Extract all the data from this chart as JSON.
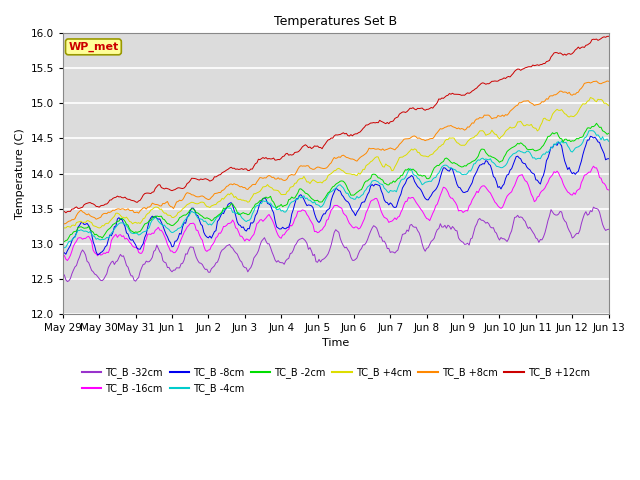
{
  "title": "Temperatures Set B",
  "xlabel": "Time",
  "ylabel": "Temperature (C)",
  "ylim": [
    12.0,
    16.0
  ],
  "xlim": [
    0,
    360
  ],
  "background_color": "#dcdcdc",
  "figure_color": "#ffffff",
  "series": [
    {
      "label": "TC_B -32cm",
      "color": "#9933cc",
      "start": 12.65,
      "end": 13.38,
      "diurnal": 0.18,
      "noise": 0.08,
      "seed": 0
    },
    {
      "label": "TC_B -16cm",
      "color": "#ff00ff",
      "start": 12.95,
      "end": 13.95,
      "diurnal": 0.16,
      "noise": 0.07,
      "seed": 1
    },
    {
      "label": "TC_B -8cm",
      "color": "#0000ee",
      "start": 13.05,
      "end": 14.35,
      "diurnal": 0.2,
      "noise": 0.08,
      "seed": 2
    },
    {
      "label": "TC_B -4cm",
      "color": "#00cccc",
      "start": 13.1,
      "end": 14.55,
      "diurnal": 0.1,
      "noise": 0.05,
      "seed": 3
    },
    {
      "label": "TC_B -2cm",
      "color": "#00dd00",
      "start": 13.15,
      "end": 14.65,
      "diurnal": 0.09,
      "noise": 0.05,
      "seed": 4
    },
    {
      "label": "TC_B +4cm",
      "color": "#dddd00",
      "start": 13.25,
      "end": 15.05,
      "diurnal": 0.07,
      "noise": 0.05,
      "seed": 5
    },
    {
      "label": "TC_B +8cm",
      "color": "#ff8800",
      "start": 13.35,
      "end": 15.35,
      "diurnal": 0.05,
      "noise": 0.04,
      "seed": 6
    },
    {
      "label": "TC_B +12cm",
      "color": "#cc0000",
      "start": 13.5,
      "end": 15.97,
      "diurnal": 0.04,
      "noise": 0.04,
      "seed": 7
    }
  ],
  "yticks": [
    12.0,
    12.5,
    13.0,
    13.5,
    14.0,
    14.5,
    15.0,
    15.5,
    16.0
  ],
  "xtick_positions": [
    0,
    24,
    48,
    72,
    96,
    120,
    144,
    168,
    192,
    216,
    240,
    264,
    288,
    312,
    336,
    360
  ],
  "xtick_labels": [
    "May 29",
    "May 30",
    "May 31",
    "Jun 1",
    "Jun 2",
    "Jun 3",
    "Jun 4",
    "Jun 5",
    "Jun 6",
    "Jun 7",
    "Jun 8",
    "Jun 9",
    "Jun 10",
    "Jun 11",
    "Jun 12",
    "Jun 13"
  ],
  "wp_met_label": "WP_met",
  "wp_met_color": "#cc0000",
  "wp_met_bg": "#ffff99",
  "wp_met_border": "#999900",
  "legend_ncol": 6,
  "figwidth": 6.4,
  "figheight": 4.8,
  "dpi": 100
}
